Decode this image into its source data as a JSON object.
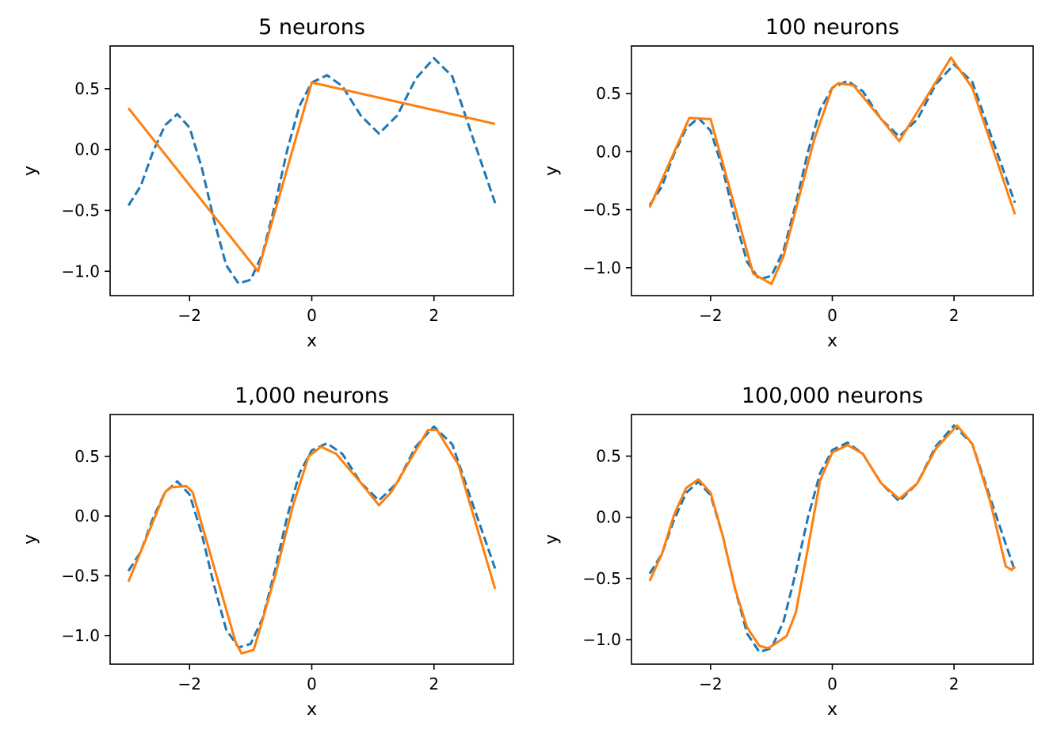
{
  "colors": {
    "target": "#1f77b4",
    "fit": "#ff7f0e",
    "axes": "#000000",
    "background": "#ffffff"
  },
  "chart_data": [
    {
      "type": "line",
      "title": "5 neurons",
      "xlabel": "x",
      "ylabel": "y",
      "xlim": [
        -3.3,
        3.3
      ],
      "ylim": [
        -1.2,
        0.85
      ],
      "xticks": [
        -2,
        0,
        2
      ],
      "xtick_labels": [
        "−2",
        "0",
        "2"
      ],
      "yticks": [
        -1.0,
        -0.5,
        0.0,
        0.5
      ],
      "ytick_labels": [
        "−1.0",
        "−0.5",
        "0.0",
        "0.5"
      ],
      "grid": false,
      "series": [
        {
          "style": "dashed",
          "color": "#1f77b4",
          "x": [
            -3.0,
            -2.8,
            -2.6,
            -2.4,
            -2.2,
            -2.0,
            -1.8,
            -1.6,
            -1.4,
            -1.2,
            -1.0,
            -0.8,
            -0.6,
            -0.4,
            -0.2,
            0.0,
            0.25,
            0.5,
            0.8,
            1.1,
            1.4,
            1.7,
            2.0,
            2.3,
            2.6,
            3.0
          ],
          "y": [
            -0.46,
            -0.3,
            -0.02,
            0.2,
            0.29,
            0.18,
            -0.15,
            -0.58,
            -0.95,
            -1.1,
            -1.07,
            -0.85,
            -0.45,
            0.0,
            0.36,
            0.55,
            0.61,
            0.52,
            0.28,
            0.13,
            0.28,
            0.58,
            0.75,
            0.6,
            0.15,
            -0.44
          ]
        },
        {
          "style": "solid",
          "color": "#ff7f0e",
          "x": [
            -3.0,
            -0.88,
            0.0,
            3.0
          ],
          "y": [
            0.34,
            -1.0,
            0.55,
            0.21
          ]
        }
      ]
    },
    {
      "type": "line",
      "title": "100 neurons",
      "xlabel": "x",
      "ylabel": "y",
      "xlim": [
        -3.3,
        3.3
      ],
      "ylim": [
        -1.24,
        0.91
      ],
      "xticks": [
        -2,
        0,
        2
      ],
      "xtick_labels": [
        "−2",
        "0",
        "2"
      ],
      "yticks": [
        -1.0,
        -0.5,
        0.0,
        0.5
      ],
      "ytick_labels": [
        "−1.0",
        "−0.5",
        "0.0",
        "0.5"
      ],
      "grid": false,
      "series": [
        {
          "style": "dashed",
          "color": "#1f77b4",
          "x": [
            -3.0,
            -2.8,
            -2.6,
            -2.4,
            -2.2,
            -2.0,
            -1.8,
            -1.6,
            -1.4,
            -1.2,
            -1.0,
            -0.8,
            -0.6,
            -0.4,
            -0.2,
            0.0,
            0.25,
            0.5,
            0.8,
            1.1,
            1.4,
            1.7,
            2.0,
            2.3,
            2.6,
            3.0
          ],
          "y": [
            -0.46,
            -0.3,
            -0.02,
            0.2,
            0.29,
            0.18,
            -0.15,
            -0.58,
            -0.95,
            -1.1,
            -1.07,
            -0.85,
            -0.45,
            0.0,
            0.36,
            0.55,
            0.61,
            0.52,
            0.28,
            0.13,
            0.28,
            0.58,
            0.75,
            0.6,
            0.15,
            -0.44
          ]
        },
        {
          "style": "solid",
          "color": "#ff7f0e",
          "x": [
            -3.0,
            -2.35,
            -2.0,
            -1.3,
            -1.0,
            -0.8,
            -0.3,
            0.0,
            0.1,
            0.35,
            1.1,
            1.95,
            2.3,
            3.0
          ],
          "y": [
            -0.48,
            0.29,
            0.28,
            -1.05,
            -1.14,
            -0.9,
            0.1,
            0.55,
            0.59,
            0.57,
            0.09,
            0.81,
            0.55,
            -0.54
          ]
        }
      ]
    },
    {
      "type": "line",
      "title": "1,000 neurons",
      "xlabel": "x",
      "ylabel": "y",
      "xlim": [
        -3.3,
        3.3
      ],
      "ylim": [
        -1.24,
        0.85
      ],
      "xticks": [
        -2,
        0,
        2
      ],
      "xtick_labels": [
        "−2",
        "0",
        "2"
      ],
      "yticks": [
        -1.0,
        -0.5,
        0.0,
        0.5
      ],
      "ytick_labels": [
        "−1.0",
        "−0.5",
        "0.0",
        "0.5"
      ],
      "grid": false,
      "series": [
        {
          "style": "dashed",
          "color": "#1f77b4",
          "x": [
            -3.0,
            -2.8,
            -2.6,
            -2.4,
            -2.2,
            -2.0,
            -1.8,
            -1.6,
            -1.4,
            -1.2,
            -1.0,
            -0.8,
            -0.6,
            -0.4,
            -0.2,
            0.0,
            0.25,
            0.5,
            0.8,
            1.1,
            1.4,
            1.7,
            2.0,
            2.3,
            2.6,
            3.0
          ],
          "y": [
            -0.46,
            -0.3,
            -0.02,
            0.2,
            0.29,
            0.18,
            -0.15,
            -0.58,
            -0.95,
            -1.1,
            -1.07,
            -0.85,
            -0.45,
            0.0,
            0.36,
            0.55,
            0.61,
            0.52,
            0.28,
            0.13,
            0.28,
            0.58,
            0.75,
            0.6,
            0.15,
            -0.44
          ]
        },
        {
          "style": "solid",
          "color": "#ff7f0e",
          "x": [
            -3.0,
            -2.4,
            -2.3,
            -2.05,
            -1.95,
            -1.25,
            -1.15,
            -0.95,
            -0.85,
            -0.6,
            -0.3,
            -0.05,
            0.15,
            0.4,
            0.8,
            1.1,
            1.3,
            1.9,
            2.05,
            2.4,
            3.0
          ],
          "y": [
            -0.55,
            0.2,
            0.24,
            0.25,
            0.2,
            -1.05,
            -1.15,
            -1.12,
            -0.95,
            -0.5,
            0.1,
            0.5,
            0.58,
            0.52,
            0.28,
            0.09,
            0.2,
            0.72,
            0.72,
            0.43,
            -0.61
          ]
        }
      ]
    },
    {
      "type": "line",
      "title": "100,000 neurons",
      "xlabel": "x",
      "ylabel": "y",
      "xlim": [
        -3.3,
        3.3
      ],
      "ylim": [
        -1.2,
        0.84
      ],
      "xticks": [
        -2,
        0,
        2
      ],
      "xtick_labels": [
        "−2",
        "0",
        "2"
      ],
      "yticks": [
        -1.0,
        -0.5,
        0.0,
        0.5
      ],
      "ytick_labels": [
        "−1.0",
        "−0.5",
        "0.0",
        "0.5"
      ],
      "grid": false,
      "series": [
        {
          "style": "dashed",
          "color": "#1f77b4",
          "x": [
            -3.0,
            -2.8,
            -2.6,
            -2.4,
            -2.2,
            -2.0,
            -1.8,
            -1.6,
            -1.4,
            -1.2,
            -1.0,
            -0.8,
            -0.6,
            -0.4,
            -0.2,
            0.0,
            0.25,
            0.5,
            0.8,
            1.1,
            1.4,
            1.7,
            2.0,
            2.3,
            2.6,
            3.0
          ],
          "y": [
            -0.46,
            -0.3,
            -0.02,
            0.2,
            0.29,
            0.18,
            -0.15,
            -0.58,
            -0.95,
            -1.1,
            -1.07,
            -0.85,
            -0.45,
            0.0,
            0.36,
            0.55,
            0.61,
            0.52,
            0.28,
            0.13,
            0.28,
            0.58,
            0.75,
            0.6,
            0.15,
            -0.44
          ]
        },
        {
          "style": "solid",
          "color": "#ff7f0e",
          "x": [
            -3.0,
            -2.8,
            -2.6,
            -2.4,
            -2.2,
            -2.0,
            -1.8,
            -1.6,
            -1.4,
            -1.2,
            -1.05,
            -0.9,
            -0.75,
            -0.6,
            -0.4,
            -0.2,
            0.0,
            0.25,
            0.5,
            0.8,
            1.1,
            1.4,
            1.7,
            2.05,
            2.3,
            2.6,
            2.85,
            2.95,
            3.0
          ],
          "y": [
            -0.52,
            -0.3,
            0.02,
            0.24,
            0.31,
            0.2,
            -0.15,
            -0.58,
            -0.9,
            -1.05,
            -1.07,
            -1.02,
            -0.97,
            -0.78,
            -0.25,
            0.3,
            0.53,
            0.59,
            0.52,
            0.28,
            0.15,
            0.28,
            0.56,
            0.75,
            0.6,
            0.12,
            -0.4,
            -0.43,
            -0.4
          ]
        }
      ]
    }
  ]
}
